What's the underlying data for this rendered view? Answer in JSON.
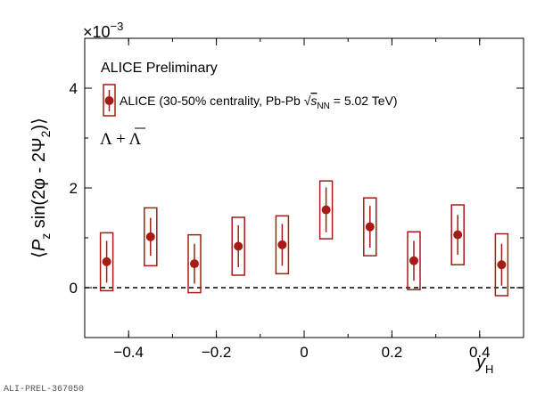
{
  "chart_data": {
    "type": "scatter",
    "x": [
      -0.45,
      -0.35,
      -0.25,
      -0.15,
      -0.05,
      0.05,
      0.15,
      0.25,
      0.35,
      0.45
    ],
    "series": [
      {
        "name": "ALICE (30-50% centrality, Pb-Pb √s_NN = 5.02 TeV)",
        "values": [
          0.52,
          1.02,
          0.48,
          0.83,
          0.86,
          1.56,
          1.22,
          0.54,
          1.06,
          0.46
        ],
        "stat_err": [
          0.42,
          0.38,
          0.4,
          0.42,
          0.42,
          0.45,
          0.42,
          0.4,
          0.4,
          0.42
        ],
        "sys_err": [
          0.58,
          0.58,
          0.58,
          0.58,
          0.58,
          0.58,
          0.58,
          0.58,
          0.6,
          0.62
        ],
        "color": "#a51c17"
      }
    ],
    "xlim": [
      -0.5,
      0.5
    ],
    "ylim": [
      -1.0,
      5.0
    ],
    "xticks": [
      -0.4,
      -0.2,
      0,
      0.2,
      0.4
    ],
    "xtick_labels": [
      "−0.4",
      "−0.2",
      "0",
      "0.2",
      "0.4"
    ],
    "yticks": [
      0,
      2,
      4
    ],
    "ytick_labels": [
      "0",
      "2",
      "4"
    ],
    "y_scale_label": "×10",
    "y_scale_exp": "−3",
    "xlabel": {
      "main": "y",
      "sub": "H"
    },
    "ylabel": "⟨P_z sin(2φ − 2Ψ_2)⟩",
    "reference_line": 0,
    "grid": false,
    "legend_placement": "top-left",
    "annotations": {
      "title": "ALICE Preliminary",
      "legend_prefix": "ALICE (30-50% centrality, Pb-Pb ",
      "legend_sqrt": "s",
      "legend_sqrt_sub": "NN",
      "legend_suffix": " = 5.02 TeV)",
      "particle_label": "Λ + Λ"
    }
  },
  "footer_id": "ALI-PREL-367050"
}
